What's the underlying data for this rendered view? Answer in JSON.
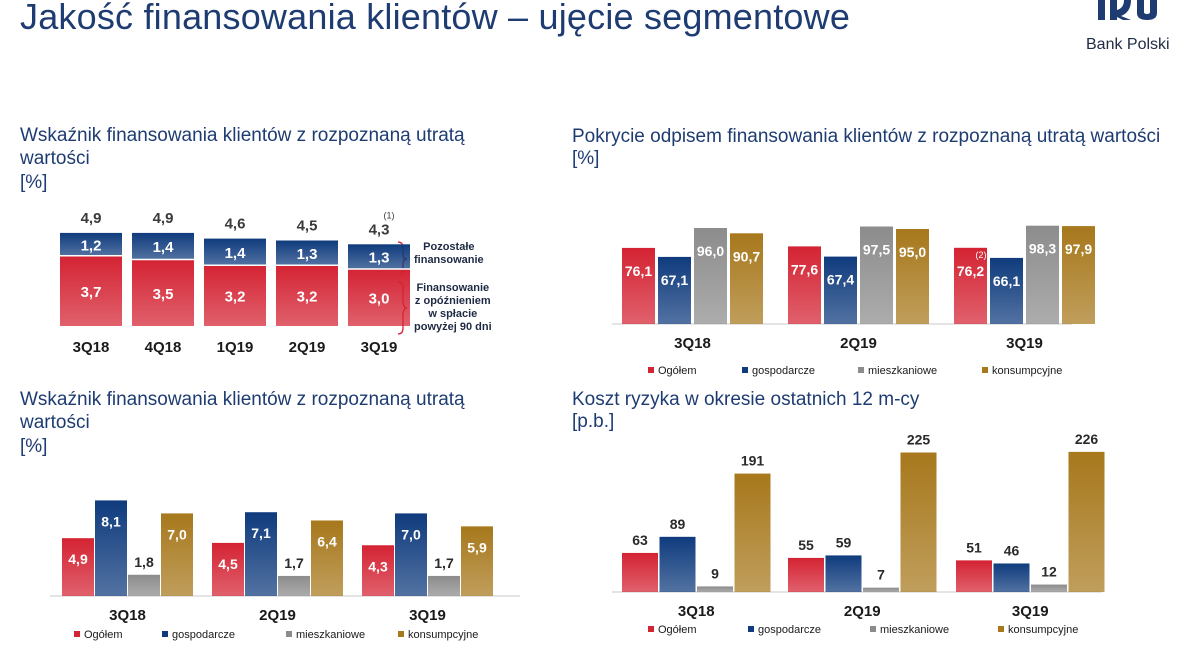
{
  "page": {
    "title": "Jakość finansowania klientów – ujęcie segmentowe",
    "brand": "Bank Polski"
  },
  "colors": {
    "red": "#d42333",
    "navy": "#0f3b7d",
    "gray": "#8c8c8c",
    "gold": "#a7781c"
  },
  "chart_data": [
    {
      "id": "stacked",
      "type": "bar",
      "stacked": true,
      "title_line1": "Wskaźnik finansowania klientów z rozpoznaną utratą",
      "title_line2": "wartości",
      "unit": "[%]",
      "categories": [
        "3Q18",
        "4Q18",
        "1Q19",
        "2Q19",
        "3Q19"
      ],
      "series": [
        {
          "name": "Finansowanie z opóźnieniem w spłacie powyżej 90 dni",
          "values": [
            "3,7",
            "3,5",
            "3,2",
            "3,2",
            "3,0"
          ]
        },
        {
          "name": "Pozostałe finansowanie",
          "values": [
            "1,2",
            "1,4",
            "1,4",
            "1,3",
            "1,3"
          ]
        }
      ],
      "totals": [
        "4,9",
        "4,9",
        "4,6",
        "4,5",
        "4,3"
      ],
      "footnote": "(1)",
      "legend_top_line1": "Pozostałe",
      "legend_top_line2": "finansowanie",
      "legend_bottom_line1": "Finansowanie",
      "legend_bottom_line2": "z opóźnieniem",
      "legend_bottom_line3": "w spłacie",
      "legend_bottom_line4": "powyżej 90 dni"
    },
    {
      "id": "coverage",
      "type": "bar",
      "title": "Pokrycie odpisem finansowania klientów z rozpoznaną utratą wartości",
      "unit": "[%]",
      "categories": [
        "3Q18",
        "2Q19",
        "3Q19"
      ],
      "series": [
        {
          "name": "Ogółem",
          "values": [
            "76,1",
            "77,6",
            "76,2"
          ]
        },
        {
          "name": "gospodarcze",
          "values": [
            "67,1",
            "67,4",
            "66,1"
          ]
        },
        {
          "name": "mieszkaniowe",
          "values": [
            "96,0",
            "97,5",
            "98,3"
          ]
        },
        {
          "name": "konsumpcyjne",
          "values": [
            "90,7",
            "95,0",
            "97,9"
          ]
        }
      ],
      "footnote": "(2)"
    },
    {
      "id": "segment",
      "type": "bar",
      "title_line1": "Wskaźnik finansowania klientów  z rozpoznaną utratą",
      "title_line2": "wartości",
      "unit": "[%]",
      "categories": [
        "3Q18",
        "2Q19",
        "3Q19"
      ],
      "series": [
        {
          "name": "Ogółem",
          "values": [
            "4,9",
            "4,5",
            "4,3"
          ]
        },
        {
          "name": "gospodarcze",
          "values": [
            "8,1",
            "7,1",
            "7,0"
          ]
        },
        {
          "name": "mieszkaniowe",
          "values": [
            "1,8",
            "1,7",
            "1,7"
          ]
        },
        {
          "name": "konsumpcyjne",
          "values": [
            "7,0",
            "6,4",
            "5,9"
          ]
        }
      ]
    },
    {
      "id": "risk",
      "type": "bar",
      "title": "Koszt ryzyka w okresie ostatnich 12 m-cy",
      "unit": "[p.b.]",
      "categories": [
        "3Q18",
        "2Q19",
        "3Q19"
      ],
      "series": [
        {
          "name": "Ogółem",
          "values": [
            "63",
            "55",
            "51"
          ]
        },
        {
          "name": "gospodarcze",
          "values": [
            "89",
            "59",
            "46"
          ]
        },
        {
          "name": "mieszkaniowe",
          "values": [
            "9",
            "7",
            "12"
          ]
        },
        {
          "name": "konsumpcyjne",
          "values": [
            "191",
            "225",
            "226"
          ]
        }
      ]
    }
  ]
}
